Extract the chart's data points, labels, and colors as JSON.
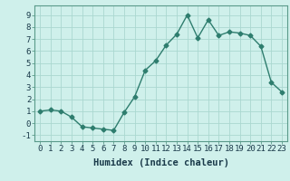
{
  "title": "",
  "xlabel": "Humidex (Indice chaleur)",
  "x": [
    0,
    1,
    2,
    3,
    4,
    5,
    6,
    7,
    8,
    9,
    10,
    11,
    12,
    13,
    14,
    15,
    16,
    17,
    18,
    19,
    20,
    21,
    22,
    23
  ],
  "y": [
    1.0,
    1.1,
    1.0,
    0.5,
    -0.3,
    -0.4,
    -0.5,
    -0.6,
    0.9,
    2.2,
    4.4,
    5.2,
    6.5,
    7.4,
    9.0,
    7.1,
    8.6,
    7.3,
    7.6,
    7.5,
    7.3,
    6.4,
    3.4,
    2.6
  ],
  "line_color": "#2e7d6e",
  "marker": "D",
  "marker_size": 2.5,
  "bg_color": "#cff0eb",
  "grid_color": "#aad8d0",
  "ylim": [
    -1.5,
    9.8
  ],
  "xlim": [
    -0.5,
    23.5
  ],
  "yticks": [
    -1,
    0,
    1,
    2,
    3,
    4,
    5,
    6,
    7,
    8,
    9
  ],
  "xticks": [
    0,
    1,
    2,
    3,
    4,
    5,
    6,
    7,
    8,
    9,
    10,
    11,
    12,
    13,
    14,
    15,
    16,
    17,
    18,
    19,
    20,
    21,
    22,
    23
  ],
  "xlabel_fontsize": 7.5,
  "tick_fontsize": 6.5,
  "line_width": 1.0
}
